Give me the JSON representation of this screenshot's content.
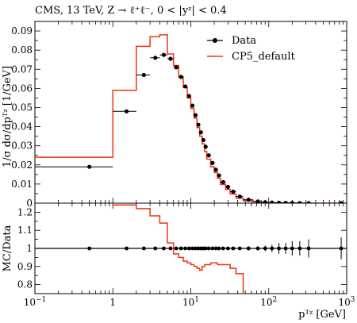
{
  "chart_data": [
    {
      "type": "line",
      "title": "CMS, 13 TeV, Z → ℓ⁺ℓ⁻, 0 < |yᶻ| < 0.4",
      "ylabel": "1/σ dσ/dpᵀᶻ [1/GeV]",
      "xscale": "log",
      "xlim": [
        0.1,
        1000
      ],
      "ylim": [
        0,
        0.095
      ],
      "yticks": [
        "0",
        "0.01",
        "0.02",
        "0.03",
        "0.04",
        "0.05",
        "0.06",
        "0.07",
        "0.08",
        "0.09"
      ],
      "legend_placement": "top-right",
      "series": [
        {
          "name": "Data",
          "color": "#000000",
          "style": "points-with-xerr",
          "x": [
            0.5,
            1.5,
            2.5,
            3.5,
            4.5,
            5.5,
            6.5,
            7.5,
            8.5,
            9.5,
            10.5,
            11.5,
            12.5,
            13.5,
            14.5,
            15.5,
            17,
            19,
            21,
            23,
            26,
            30,
            35,
            42.5,
            55,
            72.5,
            90,
            110,
            135,
            165,
            200,
            250,
            325,
            850
          ],
          "xlo": [
            0.1,
            1,
            2,
            3,
            4,
            5,
            6,
            7,
            8,
            9,
            10,
            11,
            12,
            13,
            14,
            15,
            16,
            18,
            20,
            22,
            24,
            28,
            32,
            38,
            47,
            63,
            82,
            98,
            122,
            148,
            182,
            218,
            282,
            368
          ],
          "xhi": [
            1,
            2,
            3,
            4,
            5,
            6,
            7,
            8,
            9,
            10,
            11,
            12,
            13,
            14,
            15,
            16,
            18,
            20,
            22,
            24,
            28,
            32,
            38,
            47,
            63,
            82,
            98,
            122,
            148,
            182,
            218,
            282,
            368,
            1000
          ],
          "y": [
            0.019,
            0.048,
            0.067,
            0.076,
            0.0775,
            0.0755,
            0.071,
            0.066,
            0.061,
            0.056,
            0.051,
            0.046,
            0.041,
            0.037,
            0.033,
            0.0295,
            0.025,
            0.021,
            0.0175,
            0.0145,
            0.011,
            0.0085,
            0.006,
            0.0035,
            0.0018,
            0.0009,
            0.0005,
            0.0003,
            0.0002,
            0.00015,
            0.0001,
            6e-05,
            3e-05,
            5e-06
          ]
        },
        {
          "name": "CP5_default",
          "color": "#ee3311",
          "style": "step",
          "edges": [
            0.1,
            1,
            2,
            3,
            4,
            5,
            6,
            7,
            8,
            9,
            10,
            11,
            12,
            13,
            14,
            15,
            16,
            18,
            20,
            22,
            24,
            28,
            32,
            38,
            47,
            63,
            82,
            98,
            122,
            148,
            182,
            218,
            282,
            368,
            1000
          ],
          "values": [
            0.024,
            0.059,
            0.082,
            0.087,
            0.088,
            0.078,
            0.072,
            0.066,
            0.0605,
            0.055,
            0.0495,
            0.0445,
            0.0395,
            0.035,
            0.031,
            0.027,
            0.023,
            0.019,
            0.016,
            0.013,
            0.0098,
            0.0072,
            0.0048,
            0.0026,
            0.0013,
            0.0007,
            0.0004,
            0.0002,
            0.00015,
            0.0001,
            7e-05,
            4e-05,
            2e-05,
            3e-06
          ]
        }
      ]
    },
    {
      "type": "line",
      "title": "",
      "ylabel": "MC/Data",
      "xlabel": "pᵀᶻ [GeV]",
      "xscale": "log",
      "xlim": [
        0.1,
        1000
      ],
      "ylim": [
        0.75,
        1.25
      ],
      "yticks": [
        "0.8",
        "0.9",
        "1",
        "1.1",
        "1.2"
      ],
      "xticks": [
        {
          "base": "10",
          "exp": "−1",
          "value": 0.1
        },
        {
          "base": "1",
          "exp": "",
          "value": 1
        },
        {
          "base": "10",
          "exp": "1",
          "value": 10
        },
        {
          "base": "10",
          "exp": "2",
          "value": 100
        },
        {
          "base": "10",
          "exp": "3",
          "value": 1000
        }
      ],
      "series": [
        {
          "name": "Data",
          "color": "#000000",
          "style": "points-with-yerr",
          "x": [
            0.5,
            1.5,
            2.5,
            3.5,
            4.5,
            5.5,
            6.5,
            7.5,
            8.5,
            9.5,
            10.5,
            11.5,
            12.5,
            13.5,
            14.5,
            15.5,
            17,
            19,
            21,
            23,
            26,
            30,
            35,
            42.5,
            55,
            72.5,
            90,
            110,
            135,
            165,
            200,
            250,
            325,
            850
          ],
          "y": [
            1,
            1,
            1,
            1,
            1,
            1,
            1,
            1,
            1,
            1,
            1,
            1,
            1,
            1,
            1,
            1,
            1,
            1,
            1,
            1,
            1,
            1,
            1,
            1,
            1,
            1,
            1,
            1,
            1,
            1,
            1,
            1,
            1,
            1
          ],
          "yerr": [
            0.005,
            0.005,
            0.005,
            0.005,
            0.005,
            0.005,
            0.005,
            0.005,
            0.005,
            0.005,
            0.005,
            0.005,
            0.005,
            0.005,
            0.005,
            0.005,
            0.005,
            0.005,
            0.005,
            0.005,
            0.005,
            0.006,
            0.008,
            0.01,
            0.012,
            0.012,
            0.015,
            0.02,
            0.03,
            0.03,
            0.04,
            0.04,
            0.05,
            0.06
          ]
        },
        {
          "name": "CP5_default",
          "color": "#ee3311",
          "style": "step",
          "edges": [
            0.1,
            1,
            2,
            3,
            4,
            5,
            6,
            7,
            8,
            9,
            10,
            11,
            12,
            13,
            14,
            15,
            18,
            22,
            28,
            32,
            38,
            47,
            63
          ],
          "values": [
            1.27,
            1.24,
            1.22,
            1.18,
            1.14,
            1.03,
            0.97,
            0.95,
            0.93,
            0.92,
            0.91,
            0.9,
            0.89,
            0.88,
            0.9,
            0.91,
            0.92,
            0.91,
            0.91,
            0.89,
            0.86,
            0.7
          ]
        }
      ]
    }
  ]
}
